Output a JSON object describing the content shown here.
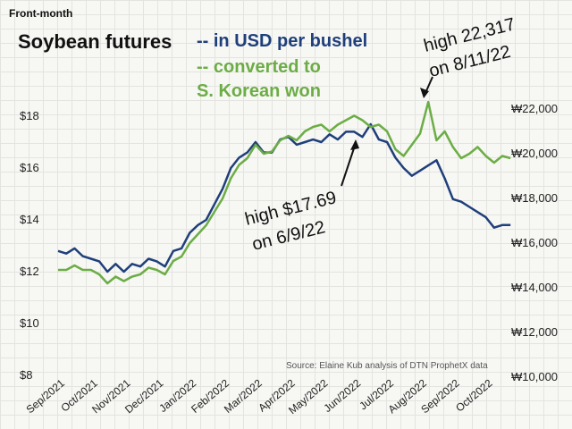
{
  "chart_data": {
    "type": "line",
    "kicker": "Front-month",
    "title": "Soybean futures",
    "subtitle_usd": "-- in USD per bushel",
    "subtitle_krw_line1": "-- converted to",
    "subtitle_krw_line2": "S. Korean won",
    "source": "Source: Elaine Kub analysis of DTN ProphetX data",
    "x_tick_labels": [
      "Sep/2021",
      "Oct/2021",
      "Nov/2021",
      "Dec/2021",
      "Jan/2022",
      "Feb/2022",
      "Mar/2022",
      "Apr/2022",
      "May/2022",
      "Jun/2022",
      "Jul/2022",
      "Aug/2022",
      "Sep/2022",
      "Oct/2022"
    ],
    "y_left": {
      "ylim": [
        8,
        18
      ],
      "ticks": [
        "$8",
        "$10",
        "$12",
        "$14",
        "$16",
        "$18"
      ],
      "tick_values": [
        8,
        10,
        12,
        14,
        16,
        18
      ]
    },
    "y_right": {
      "ylim": [
        10000,
        22000
      ],
      "ticks": [
        "₩10,000",
        "₩12,000",
        "₩14,000",
        "₩16,000",
        "₩18,000",
        "₩20,000",
        "₩22,000"
      ],
      "tick_values": [
        10000,
        12000,
        14000,
        16000,
        18000,
        20000,
        22000
      ]
    },
    "series": [
      {
        "name": "",
        "axis": "left",
        "color": "#1f3f7a",
        "x": [
          0,
          0.25,
          0.5,
          0.75,
          1,
          1.25,
          1.5,
          1.75,
          2,
          2.25,
          2.5,
          2.75,
          3,
          3.25,
          3.5,
          3.75,
          4,
          4.25,
          4.5,
          4.75,
          5,
          5.25,
          5.5,
          5.75,
          6,
          6.25,
          6.5,
          6.75,
          7,
          7.25,
          7.5,
          7.75,
          8,
          8.25,
          8.5,
          8.75,
          9,
          9.25,
          9.5,
          9.75,
          10,
          10.25,
          10.5,
          10.75,
          11,
          11.25,
          11.5,
          11.75,
          12,
          12.25,
          12.5,
          12.75,
          13,
          13.25,
          13.5,
          13.75
        ],
        "values": [
          12.8,
          12.7,
          12.9,
          12.6,
          12.5,
          12.4,
          12.0,
          12.3,
          12.0,
          12.3,
          12.2,
          12.5,
          12.4,
          12.2,
          12.8,
          12.9,
          13.5,
          13.8,
          14.0,
          14.6,
          15.2,
          16.0,
          16.4,
          16.6,
          17.0,
          16.6,
          16.6,
          17.1,
          17.2,
          16.9,
          17.0,
          17.1,
          17.0,
          17.3,
          17.1,
          17.4,
          17.4,
          17.2,
          17.69,
          17.1,
          17.0,
          16.4,
          16.0,
          15.7,
          15.9,
          16.1,
          16.3,
          15.6,
          14.8,
          14.7,
          14.5,
          14.3,
          14.1,
          13.7,
          13.8,
          13.8
        ]
      },
      {
        "name": "",
        "axis": "right",
        "color": "#6cad45",
        "x": [
          0,
          0.25,
          0.5,
          0.75,
          1,
          1.25,
          1.5,
          1.75,
          2,
          2.25,
          2.5,
          2.75,
          3,
          3.25,
          3.5,
          3.75,
          4,
          4.25,
          4.5,
          4.75,
          5,
          5.25,
          5.5,
          5.75,
          6,
          6.25,
          6.5,
          6.75,
          7,
          7.25,
          7.5,
          7.75,
          8,
          8.25,
          8.5,
          8.75,
          9,
          9.25,
          9.5,
          9.75,
          10,
          10.25,
          10.5,
          10.75,
          11,
          11.25,
          11.5,
          11.75,
          12,
          12.25,
          12.5,
          12.75,
          13,
          13.25,
          13.5,
          13.75
        ],
        "values": [
          14.8,
          14.8,
          15.0,
          14.8,
          14.8,
          14.6,
          14.2,
          14.5,
          14.3,
          14.5,
          14.6,
          14.9,
          14.8,
          14.6,
          15.2,
          15.4,
          16.0,
          16.4,
          16.8,
          17.4,
          18.0,
          18.9,
          19.5,
          19.8,
          20.4,
          20.0,
          20.1,
          20.6,
          20.8,
          20.6,
          21.0,
          21.2,
          21.3,
          21.0,
          21.3,
          21.5,
          21.7,
          21.5,
          21.2,
          21.3,
          21.0,
          20.2,
          19.9,
          20.4,
          20.9,
          22.317,
          20.6,
          21.0,
          20.3,
          19.8,
          20.0,
          20.3,
          19.9,
          19.6,
          19.9,
          19.8
        ]
      }
    ],
    "annotations": [
      {
        "line1": "high $17.69",
        "line2": "on 6/9/22"
      },
      {
        "line1": "high 22,317",
        "line2": "on 8/11/22"
      }
    ]
  }
}
